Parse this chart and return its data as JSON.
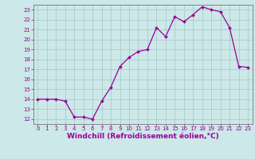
{
  "x": [
    0,
    1,
    2,
    3,
    4,
    5,
    6,
    7,
    8,
    9,
    10,
    11,
    12,
    13,
    14,
    15,
    16,
    17,
    18,
    19,
    20,
    21,
    22,
    23
  ],
  "y": [
    14,
    14,
    14,
    13.8,
    12.2,
    12.2,
    12,
    13.8,
    15.2,
    17.3,
    18.2,
    18.8,
    19.0,
    21.2,
    20.3,
    22.3,
    21.8,
    22.5,
    23.3,
    23.0,
    22.8,
    21.2,
    17.3,
    17.2
  ],
  "line_color": "#990099",
  "marker": "D",
  "marker_size": 2,
  "bg_color": "#cce8e8",
  "grid_color": "#aacccc",
  "xlabel": "Windchill (Refroidissement éolien,°C)",
  "xlim": [
    -0.5,
    23.5
  ],
  "ylim": [
    11.5,
    23.5
  ],
  "xticks": [
    0,
    1,
    2,
    3,
    4,
    5,
    6,
    7,
    8,
    9,
    10,
    11,
    12,
    13,
    14,
    15,
    16,
    17,
    18,
    19,
    20,
    21,
    22,
    23
  ],
  "yticks": [
    12,
    13,
    14,
    15,
    16,
    17,
    18,
    19,
    20,
    21,
    22,
    23
  ],
  "tick_color": "#990099",
  "tick_fontsize": 5,
  "xlabel_fontsize": 6.5,
  "axis_color": "#777777"
}
